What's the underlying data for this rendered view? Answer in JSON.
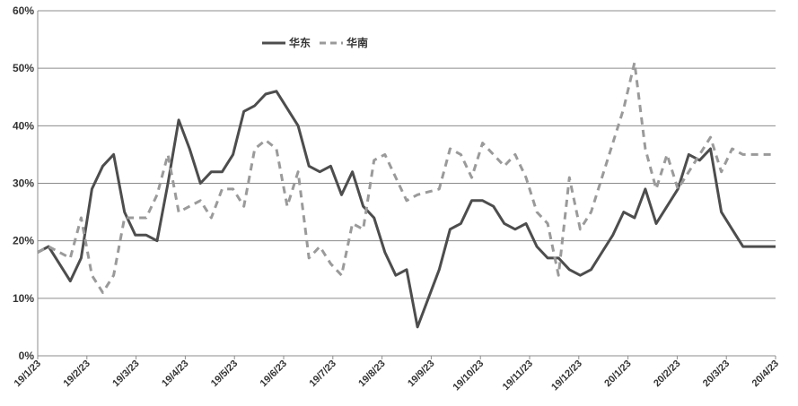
{
  "chart_data": {
    "type": "line",
    "title": "",
    "xlabel": "",
    "ylabel": "",
    "ylim": [
      0,
      60
    ],
    "yticks": [
      0,
      10,
      20,
      30,
      40,
      50,
      60
    ],
    "ytick_labels": [
      "0%",
      "10%",
      "20%",
      "30%",
      "40%",
      "50%",
      "60%"
    ],
    "grid": true,
    "legend": "top-left",
    "xtick_labels": [
      "19/1/23",
      "19/2/23",
      "19/3/23",
      "19/4/23",
      "19/5/23",
      "19/6/23",
      "19/7/23",
      "19/8/23",
      "19/9/23",
      "19/10/23",
      "19/11/23",
      "19/12/23",
      "20/1/23",
      "20/2/23",
      "20/3/23",
      "20/4/23"
    ],
    "series": [
      {
        "name": "华东",
        "style": "solid",
        "color": "#4d4d4d",
        "x": [
          0,
          1,
          3,
          4,
          5,
          6,
          7,
          8,
          9,
          10,
          11,
          12,
          13,
          14,
          15,
          16,
          17,
          18,
          19,
          20,
          21,
          22,
          23,
          24,
          25,
          26,
          27,
          28,
          29,
          30,
          31,
          32,
          33,
          34,
          35,
          36,
          37,
          38,
          39,
          40,
          41,
          42,
          43,
          44,
          45,
          46,
          47,
          48,
          49,
          50,
          51,
          52,
          53,
          54,
          55,
          56,
          57,
          58,
          59,
          60,
          61,
          62,
          63,
          64,
          65,
          66,
          67,
          68
        ],
        "values": [
          18,
          19,
          13,
          17,
          29,
          33,
          35,
          25,
          21,
          21,
          20,
          30,
          41,
          36,
          30,
          32,
          32,
          35,
          42.5,
          43.5,
          45.5,
          46,
          43,
          40,
          33,
          32,
          33,
          28,
          32,
          26,
          24,
          18,
          14,
          15,
          5,
          10,
          15,
          22,
          23,
          27,
          27,
          26,
          23,
          22,
          23,
          19,
          17,
          17,
          15,
          14,
          15,
          18,
          21,
          25,
          24,
          29,
          23,
          26,
          29,
          35,
          34,
          36,
          25,
          22,
          19,
          19,
          19,
          19
        ]
      },
      {
        "name": "华南",
        "style": "dashed",
        "color": "#9a9a9a",
        "x": [
          0,
          1,
          2,
          3,
          4,
          5,
          6,
          7,
          8,
          9,
          10,
          11,
          12,
          13,
          14,
          15,
          16,
          17,
          18,
          19,
          20,
          21,
          22,
          23,
          24,
          25,
          26,
          27,
          28,
          29,
          30,
          31,
          32,
          33,
          34,
          35,
          36,
          37,
          38,
          39,
          40,
          41,
          42,
          43,
          44,
          45,
          46,
          47,
          48,
          49,
          50,
          51,
          52,
          53,
          54,
          55,
          56,
          57,
          58,
          59,
          60,
          61,
          62,
          63,
          64,
          65,
          66,
          67,
          68
        ],
        "values": [
          18,
          19,
          18,
          17,
          24,
          14,
          11,
          14,
          24,
          24,
          24,
          28,
          35,
          25,
          26,
          27,
          24,
          29,
          29,
          26,
          36,
          37.5,
          36,
          26,
          32,
          17,
          19,
          16,
          14,
          23,
          22,
          34,
          35,
          31,
          27,
          28,
          28.5,
          29,
          36,
          35,
          31,
          37,
          35,
          33,
          35,
          31,
          25,
          23,
          14,
          31,
          22,
          25,
          31,
          37,
          43,
          51,
          36,
          29,
          35,
          29,
          32,
          35,
          38,
          32,
          36,
          35,
          35,
          35,
          35
        ]
      }
    ]
  }
}
